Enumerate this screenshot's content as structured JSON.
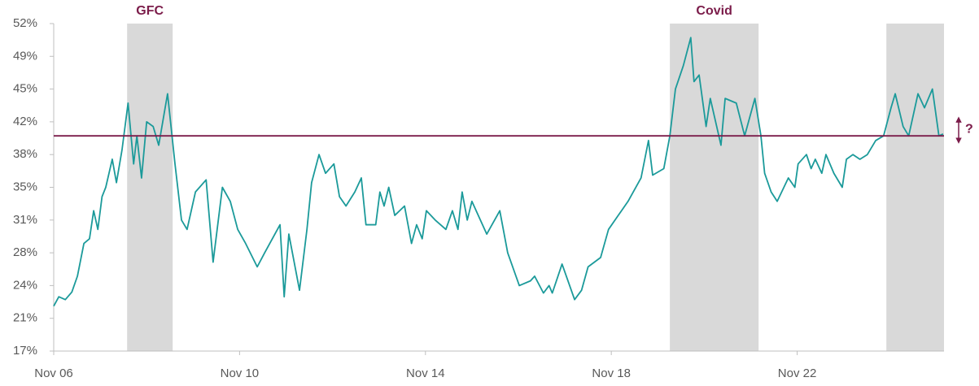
{
  "chart_data": {
    "type": "line",
    "color": "#1b9a9a",
    "x": [
      2006.83,
      2006.94,
      2007.08,
      2007.22,
      2007.34,
      2007.48,
      2007.6,
      2007.69,
      2007.78,
      2007.87,
      2007.95,
      2008.09,
      2008.18,
      2008.3,
      2008.43,
      2008.55,
      2008.62,
      2008.72,
      2008.83,
      2008.97,
      2009.09,
      2009.28,
      2009.44,
      2009.58,
      2009.7,
      2009.88,
      2010.11,
      2010.26,
      2010.46,
      2010.63,
      2010.79,
      2010.96,
      2011.21,
      2011.37,
      2011.7,
      2011.79,
      2011.89,
      2012.12,
      2012.28,
      2012.38,
      2012.54,
      2012.68,
      2012.86,
      2012.98,
      2013.12,
      2013.31,
      2013.45,
      2013.55,
      2013.76,
      2013.85,
      2013.94,
      2014.04,
      2014.17,
      2014.38,
      2014.53,
      2014.64,
      2014.76,
      2014.85,
      2015.04,
      2015.27,
      2015.41,
      2015.53,
      2015.62,
      2015.73,
      2015.83,
      2016.15,
      2016.43,
      2016.6,
      2016.85,
      2017.09,
      2017.18,
      2017.37,
      2017.49,
      2017.56,
      2017.77,
      2018.04,
      2018.19,
      2018.33,
      2018.6,
      2018.77,
      2018.98,
      2019.19,
      2019.47,
      2019.63,
      2019.72,
      2019.96,
      2020.09,
      2020.21,
      2020.38,
      2020.54,
      2020.61,
      2020.72,
      2020.87,
      2020.96,
      2021.19,
      2021.28,
      2021.52,
      2021.7,
      2021.92,
      2022.05,
      2022.13,
      2022.27,
      2022.4,
      2022.64,
      2022.78,
      2022.85,
      2023.03,
      2023.13,
      2023.22,
      2023.36,
      2023.45,
      2023.62,
      2023.8,
      2023.89,
      2024.03,
      2024.18,
      2024.34,
      2024.52,
      2024.69,
      2024.85,
      2024.94,
      2025.11,
      2025.23,
      2025.43,
      2025.57,
      2025.74,
      2025.88,
      2025.97
    ],
    "values": [
      21.8,
      22.8,
      22.5,
      23.3,
      25,
      28.5,
      29,
      32,
      30,
      33.5,
      34.5,
      37.5,
      35,
      38.5,
      43.5,
      37,
      40,
      35.5,
      41.5,
      41,
      39,
      44.5,
      37,
      31,
      30,
      34,
      35.3,
      26.5,
      34.5,
      33,
      30,
      28.5,
      26,
      27.5,
      30.5,
      22.8,
      29.5,
      23.5,
      30,
      35,
      38,
      36,
      37,
      33.5,
      32.5,
      34,
      35.5,
      30.5,
      30.5,
      34,
      32.5,
      34.5,
      31.5,
      32.5,
      28.5,
      30.5,
      29,
      32,
      31,
      30,
      32,
      30,
      34,
      31,
      33,
      29.5,
      32,
      27.5,
      24,
      24.5,
      25,
      23.2,
      24,
      23.2,
      26.3,
      22.5,
      23.5,
      26,
      27,
      30,
      31.5,
      33,
      35.5,
      39.5,
      35.8,
      36.5,
      40,
      45,
      47.5,
      50.5,
      45.8,
      46.5,
      41,
      44,
      39,
      44,
      43.5,
      40,
      44,
      40,
      36,
      34,
      33,
      35.5,
      34.5,
      37,
      38,
      36.5,
      37.5,
      36,
      38,
      36,
      34.5,
      37.5,
      38,
      37.5,
      38,
      39.5,
      40,
      43,
      44.5,
      41,
      40,
      44.5,
      43,
      45,
      40,
      40.2
    ],
    "xlim": [
      2006.83,
      2025.99
    ],
    "xticks": [
      {
        "value": 2006.83,
        "label": "Nov 06"
      },
      {
        "value": 2010.83,
        "label": "Nov 10"
      },
      {
        "value": 2014.83,
        "label": "Nov 14"
      },
      {
        "value": 2018.83,
        "label": "Nov 18"
      },
      {
        "value": 2022.83,
        "label": "Nov 22"
      }
    ],
    "ylim": [
      17,
      52
    ],
    "yticks": [
      {
        "value": 17,
        "label": "17%"
      },
      {
        "value": 20.5,
        "label": "21%"
      },
      {
        "value": 24,
        "label": "24%"
      },
      {
        "value": 27.5,
        "label": "28%"
      },
      {
        "value": 31,
        "label": "31%"
      },
      {
        "value": 34.5,
        "label": "35%"
      },
      {
        "value": 38,
        "label": "38%"
      },
      {
        "value": 41.5,
        "label": "42%"
      },
      {
        "value": 45,
        "label": "45%"
      },
      {
        "value": 48.5,
        "label": "49%"
      },
      {
        "value": 52,
        "label": "52%"
      }
    ],
    "shade_color": "#d9d9d9",
    "shaded_periods": [
      {
        "start": 2008.41,
        "end": 2009.39,
        "label": "GFC"
      },
      {
        "start": 2020.09,
        "end": 2022.0,
        "label": "Covid"
      },
      {
        "start": 2024.75,
        "end": 2025.99
      }
    ],
    "reference_line": {
      "value": 40,
      "color": "#7b1c4a",
      "annotation": "?"
    }
  }
}
